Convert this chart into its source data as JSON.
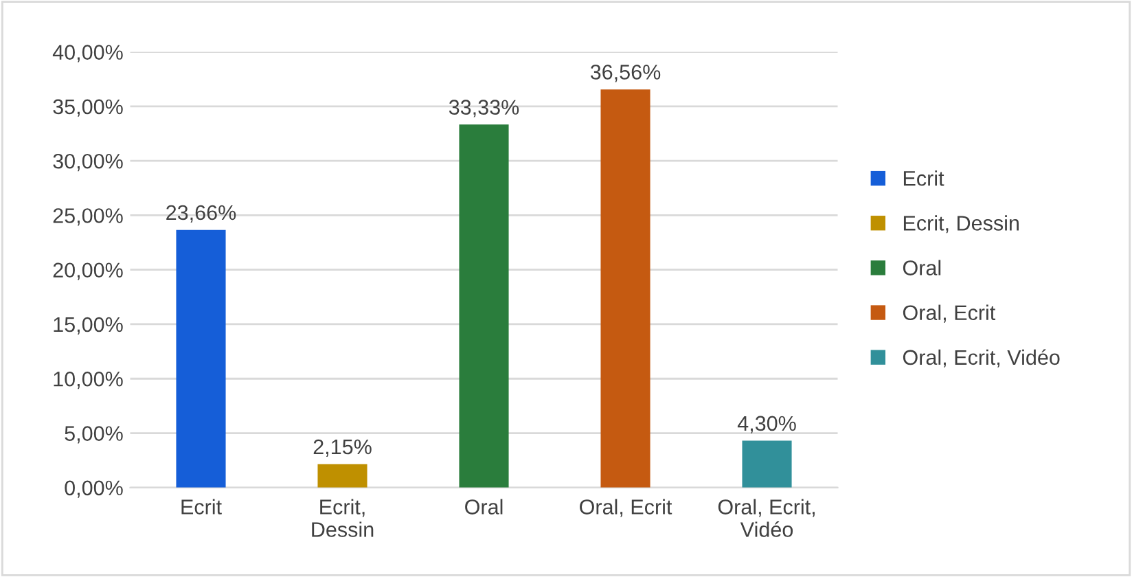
{
  "chart_data": {
    "type": "bar",
    "categories": [
      "Ecrit",
      "Ecrit, Dessin",
      "Oral",
      "Oral, Ecrit",
      "Oral, Ecrit, Vidéo"
    ],
    "series": [
      {
        "name": "Ecrit",
        "color": "#155ed8",
        "values": [
          23.66,
          null,
          null,
          null,
          null
        ],
        "value_labels": [
          "23,66%",
          null,
          null,
          null,
          null
        ]
      },
      {
        "name": "Ecrit, Dessin",
        "color": "#bf9000",
        "values": [
          null,
          2.15,
          null,
          null,
          null
        ],
        "value_labels": [
          null,
          "2,15%",
          null,
          null,
          null
        ]
      },
      {
        "name": "Oral",
        "color": "#2a7d3c",
        "values": [
          null,
          null,
          33.33,
          null,
          null
        ],
        "value_labels": [
          null,
          null,
          "33,33%",
          null,
          null
        ]
      },
      {
        "name": "Oral, Ecrit",
        "color": "#c55a11",
        "values": [
          null,
          null,
          null,
          36.56,
          null
        ],
        "value_labels": [
          null,
          null,
          null,
          "36,56%",
          null
        ]
      },
      {
        "name": "Oral, Ecrit, Vidéo",
        "color": "#31909a",
        "values": [
          null,
          null,
          null,
          null,
          4.3
        ],
        "value_labels": [
          null,
          null,
          null,
          null,
          "4,30%"
        ]
      }
    ],
    "ylim": [
      0,
      40
    ],
    "yticks": [
      {
        "value": 0,
        "label": "0,00%"
      },
      {
        "value": 5,
        "label": "5,00%"
      },
      {
        "value": 10,
        "label": "10,00%"
      },
      {
        "value": 15,
        "label": "15,00%"
      },
      {
        "value": 20,
        "label": "20,00%"
      },
      {
        "value": 25,
        "label": "25,00%"
      },
      {
        "value": 30,
        "label": "30,00%"
      },
      {
        "value": 35,
        "label": "35,00%"
      },
      {
        "value": 40,
        "label": "40,00%"
      }
    ],
    "grid": "y",
    "legend": "right"
  }
}
